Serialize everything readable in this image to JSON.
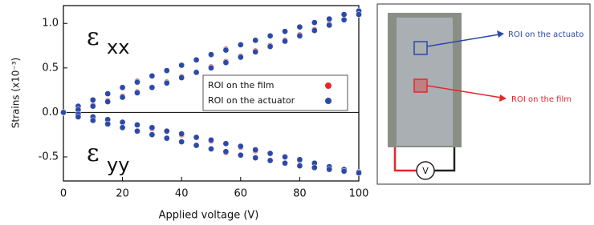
{
  "chart_data": {
    "type": "scatter",
    "xlabel": "Applied voltage (V)",
    "ylabel": "Strains (x10⁻³)",
    "annotations": [
      {
        "symbol": "ε",
        "sub": "xx"
      },
      {
        "symbol": "ε",
        "sub": "yy"
      }
    ],
    "x": [
      0,
      5,
      10,
      15,
      20,
      25,
      30,
      35,
      40,
      45,
      50,
      55,
      60,
      65,
      70,
      75,
      80,
      85,
      90,
      95,
      100
    ],
    "series": [
      {
        "name": "ROI on the film",
        "color": "#e8262b",
        "curves": [
          [
            0,
            0.07,
            0.14,
            0.21,
            0.28,
            0.35,
            0.41,
            0.47,
            0.53,
            0.59,
            0.65,
            0.71,
            0.76,
            0.81,
            0.86,
            0.91,
            0.96,
            1.01,
            1.05,
            1.1,
            1.13
          ],
          [
            0,
            0.04,
            0.08,
            0.13,
            0.18,
            0.23,
            0.28,
            0.34,
            0.4,
            0.45,
            0.51,
            0.57,
            0.63,
            0.69,
            0.75,
            0.81,
            0.87,
            0.93,
            0.99,
            1.04,
            1.1
          ],
          [
            0,
            -0.02,
            -0.05,
            -0.08,
            -0.11,
            -0.14,
            -0.18,
            -0.21,
            -0.25,
            -0.28,
            -0.32,
            -0.35,
            -0.39,
            -0.43,
            -0.46,
            -0.5,
            -0.54,
            -0.57,
            -0.61,
            -0.64,
            -0.67
          ],
          [
            0,
            -0.05,
            -0.09,
            -0.13,
            -0.17,
            -0.21,
            -0.25,
            -0.29,
            -0.33,
            -0.37,
            -0.41,
            -0.45,
            -0.48,
            -0.51,
            -0.54,
            -0.57,
            -0.6,
            -0.62,
            -0.64,
            -0.66,
            -0.68
          ]
        ]
      },
      {
        "name": "ROI on the actuator",
        "color": "#2b4aa8",
        "curves": [
          [
            0,
            0.07,
            0.14,
            0.21,
            0.28,
            0.34,
            0.41,
            0.47,
            0.53,
            0.59,
            0.65,
            0.7,
            0.76,
            0.81,
            0.86,
            0.91,
            0.96,
            1.01,
            1.05,
            1.1,
            1.14
          ],
          [
            0,
            0.03,
            0.07,
            0.12,
            0.17,
            0.22,
            0.28,
            0.33,
            0.39,
            0.45,
            0.5,
            0.56,
            0.62,
            0.68,
            0.74,
            0.8,
            0.86,
            0.92,
            0.98,
            1.04,
            1.1
          ],
          [
            0,
            -0.02,
            -0.05,
            -0.08,
            -0.11,
            -0.14,
            -0.17,
            -0.21,
            -0.24,
            -0.28,
            -0.31,
            -0.35,
            -0.38,
            -0.42,
            -0.46,
            -0.5,
            -0.53,
            -0.57,
            -0.61,
            -0.64,
            -0.67
          ],
          [
            0,
            -0.05,
            -0.09,
            -0.13,
            -0.17,
            -0.21,
            -0.25,
            -0.29,
            -0.33,
            -0.37,
            -0.41,
            -0.44,
            -0.48,
            -0.51,
            -0.54,
            -0.57,
            -0.6,
            -0.62,
            -0.64,
            -0.66,
            -0.68
          ]
        ]
      }
    ],
    "xlim": [
      0,
      100
    ],
    "xticks": [
      0,
      20,
      40,
      60,
      80,
      100
    ],
    "ylim": [
      -0.77,
      1.2
    ],
    "yticks": [
      -0.5,
      {
        "value": 0,
        "label": "0.0"
      },
      0.5,
      {
        "value": 1,
        "label": "1.0"
      }
    ],
    "zero_line": true
  },
  "photo": {
    "labels": [
      "ROI on the actuato",
      "ROI on the film"
    ],
    "voltmeter": "V"
  }
}
